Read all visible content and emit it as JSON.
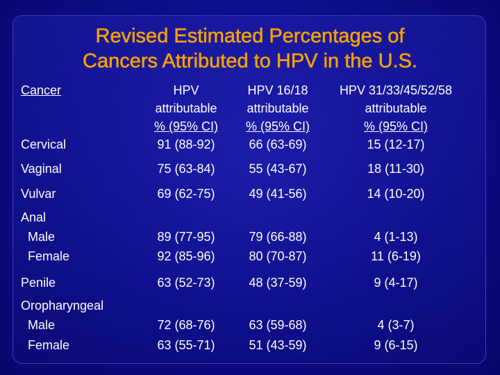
{
  "title": {
    "line1": "Revised Estimated Percentages of",
    "line2": "Cancers Attributed to HPV in the U.S."
  },
  "table": {
    "headers": {
      "cancer": "Cancer",
      "col1": [
        "HPV",
        "attributable",
        "% (95% CI)"
      ],
      "col2": [
        "HPV 16/18",
        "attributable",
        "% (95% CI)"
      ],
      "col3": [
        "HPV 31/33/45/52/58",
        "attributable",
        "% (95% CI)"
      ]
    },
    "rows": {
      "cervical": {
        "label": "Cervical",
        "col1": "91 (88-92)",
        "col2": "66 (63-69)",
        "col3": "15 (12-17)"
      },
      "vaginal": {
        "label": "Vaginal",
        "col1": "75 (63-84)",
        "col2": "55 (43-67)",
        "col3": "18 (11-30)"
      },
      "vulvar": {
        "label": "Vulvar",
        "col1": "69 (62-75)",
        "col2": "49 (41-56)",
        "col3": "14 (10-20)"
      },
      "anal": {
        "label": "Anal",
        "male": {
          "label": "Male",
          "col1": "89 (77-95)",
          "col2": "79 (66-88)",
          "col3": "4 (1-13)"
        },
        "female": {
          "label": "Female",
          "col1": "92 (85-96)",
          "col2": "80 (70-87)",
          "col3": "11 (6-19)"
        }
      },
      "penile": {
        "label": "Penile",
        "col1": "63 (52-73)",
        "col2": "48 (37-59)",
        "col3": "9 (4-17)"
      },
      "oropharyngeal": {
        "label": "Oropharyngeal",
        "male": {
          "label": "Male",
          "col1": "72 (68-76)",
          "col2": "63 (59-68)",
          "col3": "4 (3-7)"
        },
        "female": {
          "label": "Female",
          "col1": "63 (55-71)",
          "col2": "51 (43-59)",
          "col3": "9 (6-15)"
        }
      }
    }
  },
  "colors": {
    "background": "#0c0c86",
    "title": "#f5a000",
    "text": "#ffffff"
  }
}
